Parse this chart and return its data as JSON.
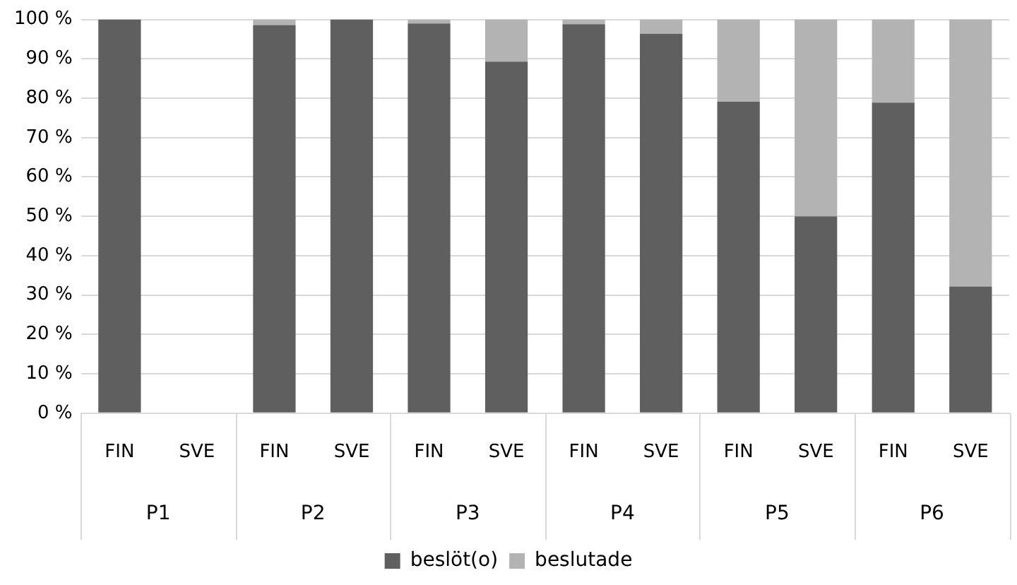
{
  "chart_data": {
    "type": "bar",
    "stacked": true,
    "categories": [
      "FIN",
      "SVE",
      "FIN",
      "SVE",
      "FIN",
      "SVE",
      "FIN",
      "SVE",
      "FIN",
      "SVE",
      "FIN",
      "SVE"
    ],
    "annotations": [
      "P1",
      "P2",
      "P3",
      "P4",
      "P5",
      "P6"
    ],
    "series": [
      {
        "name": "beslöt(o)",
        "color": "#5f5f5f",
        "values": [
          100,
          null,
          98.6,
          100,
          99,
          89.3,
          98.8,
          96.4,
          79.1,
          50,
          78.9,
          32.2
        ]
      },
      {
        "name": "beslutade",
        "color": "#b3b3b3",
        "values": [
          0,
          null,
          1.4,
          0,
          1,
          10.7,
          1.2,
          3.6,
          20.9,
          50,
          21.1,
          67.8
        ]
      }
    ],
    "ylim": [
      0,
      100
    ],
    "yticks": [
      {
        "value": 0,
        "label": "0 %"
      },
      {
        "value": 10,
        "label": "10 %"
      },
      {
        "value": 20,
        "label": "20 %"
      },
      {
        "value": 30,
        "label": "30 %"
      },
      {
        "value": 40,
        "label": "40 %"
      },
      {
        "value": 50,
        "label": "50 %"
      },
      {
        "value": 60,
        "label": "60 %"
      },
      {
        "value": 70,
        "label": "70 %"
      },
      {
        "value": 80,
        "label": "80 %"
      },
      {
        "value": 90,
        "label": "90 %"
      },
      {
        "value": 100,
        "label": "100 %"
      }
    ],
    "grid": "y",
    "legend": "bottom"
  }
}
